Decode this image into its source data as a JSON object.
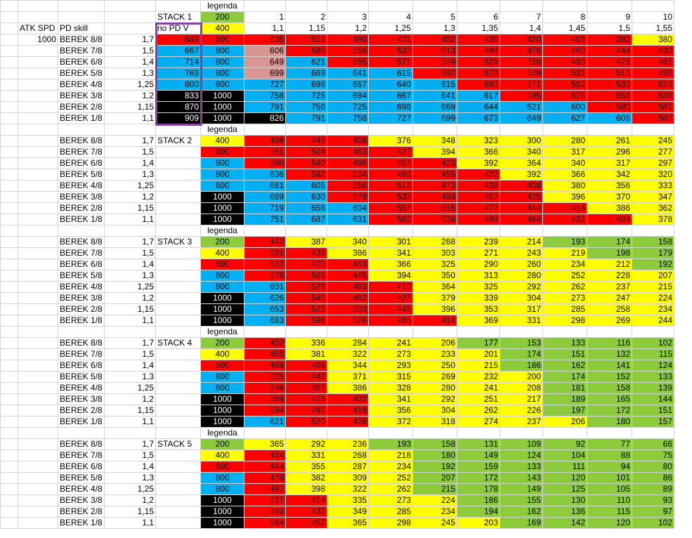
{
  "colors": {
    "green": "#8ccc3c",
    "yellow": "#ffff00",
    "red": "#ff0000",
    "blue": "#00b0f0",
    "black": "#000000",
    "pink": "#d99594",
    "purple_box": "#8a3fa0"
  },
  "header": {
    "atk_spd_label": "ATK SPD",
    "atk_spd_value": "1000",
    "pd_skill_label": "PD skill",
    "no_pd_label": "no PD V",
    "top_values": [
      "200",
      "400"
    ],
    "columns": [
      "1",
      "2",
      "3",
      "4",
      "5",
      "6",
      "7",
      "8",
      "9",
      "10"
    ],
    "multipliers": [
      "1,1",
      "1,15",
      "1,2",
      "1,25",
      "1,3",
      "1,35",
      "1,4",
      "1,45",
      "1,5",
      "1,55"
    ]
  },
  "legend_label": "legenda",
  "rows": [
    {
      "name": "BEREK 8/8",
      "skill": "1,7"
    },
    {
      "name": "BEREK 7/8",
      "skill": "1,5"
    },
    {
      "name": "BEREK 6/8",
      "skill": "1,4"
    },
    {
      "name": "BEREK 5/8",
      "skill": "1,3"
    },
    {
      "name": "BEREK 4/8",
      "skill": "1,25"
    },
    {
      "name": "BEREK 3/8",
      "skill": "1,2"
    },
    {
      "name": "BEREK 2/8",
      "skill": "1,15"
    },
    {
      "name": "BEREK 1/8",
      "skill": "1,1"
    }
  ],
  "stacks": [
    {
      "label": "STACK 1",
      "col_a": [
        "588",
        "667",
        "714",
        "769",
        "800",
        "833",
        "870",
        "909"
      ],
      "col_a_colors": [
        "red",
        "blue",
        "blue",
        "blue",
        "blue",
        "black",
        "black",
        "black"
      ],
      "col_b": [
        "600",
        "800",
        "800",
        "800",
        "800",
        "1000",
        "1000",
        "1000"
      ],
      "col_b_colors": [
        "red",
        "blue",
        "blue",
        "blue",
        "blue",
        "black",
        "black",
        "black"
      ],
      "values": [
        [
          "535",
          "512",
          "490",
          "471",
          "452",
          "436",
          "420",
          "406",
          "392",
          "380"
        ],
        [
          "606",
          "580",
          "556",
          "533",
          "513",
          "494",
          "476",
          "460",
          "444",
          "430"
        ],
        [
          "649",
          "621",
          "595",
          "571",
          "549",
          "529",
          "510",
          "493",
          "476",
          "461"
        ],
        [
          "699",
          "669",
          "641",
          "615",
          "592",
          "570",
          "549",
          "531",
          "513",
          "496"
        ],
        [
          "727",
          "696",
          "667",
          "640",
          "615",
          "593",
          "571",
          "552",
          "533",
          "516"
        ],
        [
          "758",
          "725",
          "694",
          "667",
          "641",
          "617",
          "595",
          "575",
          "556",
          "538"
        ],
        [
          "791",
          "756",
          "725",
          "696",
          "669",
          "644",
          "621",
          "600",
          "580",
          "561"
        ],
        [
          "826",
          "791",
          "758",
          "727",
          "699",
          "673",
          "649",
          "627",
          "606",
          "587"
        ]
      ],
      "colors": [
        [
          "red",
          "red",
          "red",
          "red",
          "red",
          "red",
          "red",
          "red",
          "red",
          "yellow"
        ],
        [
          "pink",
          "red",
          "red",
          "red",
          "red",
          "red",
          "red",
          "red",
          "red",
          "red"
        ],
        [
          "pink",
          "blue",
          "red",
          "red",
          "red",
          "red",
          "red",
          "red",
          "red",
          "red"
        ],
        [
          "pink",
          "blue",
          "blue",
          "blue",
          "red",
          "red",
          "red",
          "red",
          "red",
          "red"
        ],
        [
          "blue",
          "blue",
          "blue",
          "blue",
          "blue",
          "red",
          "red",
          "red",
          "red",
          "red"
        ],
        [
          "blue",
          "blue",
          "blue",
          "blue",
          "blue",
          "blue",
          "red",
          "red",
          "red",
          "red"
        ],
        [
          "blue",
          "blue",
          "blue",
          "blue",
          "blue",
          "blue",
          "blue",
          "blue",
          "red",
          "red"
        ],
        [
          "black",
          "blue",
          "blue",
          "blue",
          "blue",
          "blue",
          "blue",
          "blue",
          "blue",
          "red"
        ]
      ]
    },
    {
      "label": "STACK 2",
      "col_b": [
        "400",
        "600",
        "800",
        "800",
        "800",
        "1000",
        "1000",
        "1000"
      ],
      "col_b_colors": [
        "yellow",
        "red",
        "blue",
        "blue",
        "blue",
        "black",
        "black",
        "black"
      ],
      "values": [
        [
          "486",
          "445",
          "408",
          "376",
          "348",
          "323",
          "300",
          "280",
          "261",
          "245"
        ],
        [
          "551",
          "504",
          "463",
          "427",
          "394",
          "366",
          "340",
          "317",
          "296",
          "277"
        ],
        [
          "590",
          "540",
          "496",
          "457",
          "423",
          "392",
          "364",
          "340",
          "317",
          "297"
        ],
        [
          "636",
          "582",
          "534",
          "492",
          "455",
          "422",
          "392",
          "366",
          "342",
          "320"
        ],
        [
          "661",
          "605",
          "556",
          "512",
          "473",
          "439",
          "408",
          "380",
          "356",
          "333"
        ],
        [
          "689",
          "630",
          "579",
          "533",
          "493",
          "457",
          "425",
          "396",
          "370",
          "347"
        ],
        [
          "719",
          "658",
          "604",
          "557",
          "515",
          "477",
          "444",
          "414",
          "386",
          "362"
        ],
        [
          "751",
          "687",
          "631",
          "582",
          "538",
          "499",
          "464",
          "432",
          "404",
          "378"
        ]
      ],
      "colors": [
        [
          "red",
          "red",
          "red",
          "yellow",
          "yellow",
          "yellow",
          "yellow",
          "yellow",
          "yellow",
          "yellow"
        ],
        [
          "red",
          "red",
          "red",
          "red",
          "yellow",
          "yellow",
          "yellow",
          "yellow",
          "yellow",
          "yellow"
        ],
        [
          "red",
          "red",
          "red",
          "red",
          "red",
          "yellow",
          "yellow",
          "yellow",
          "yellow",
          "yellow"
        ],
        [
          "blue",
          "red",
          "red",
          "red",
          "red",
          "red",
          "yellow",
          "yellow",
          "yellow",
          "yellow"
        ],
        [
          "blue",
          "blue",
          "red",
          "red",
          "red",
          "red",
          "red",
          "yellow",
          "yellow",
          "yellow"
        ],
        [
          "blue",
          "blue",
          "red",
          "red",
          "red",
          "red",
          "red",
          "yellow",
          "yellow",
          "yellow"
        ],
        [
          "blue",
          "blue",
          "blue",
          "red",
          "red",
          "red",
          "red",
          "red",
          "yellow",
          "yellow"
        ],
        [
          "blue",
          "blue",
          "blue",
          "red",
          "red",
          "red",
          "red",
          "red",
          "red",
          "yellow"
        ]
      ]
    },
    {
      "label": "STACK 3",
      "col_b": [
        "200",
        "400",
        "600",
        "800",
        "800",
        "1000",
        "1000",
        "1000"
      ],
      "col_b_colors": [
        "green",
        "yellow",
        "red",
        "blue",
        "blue",
        "black",
        "black",
        "black"
      ],
      "values": [
        [
          "442",
          "387",
          "340",
          "301",
          "268",
          "239",
          "214",
          "193",
          "174",
          "158"
        ],
        [
          "501",
          "438",
          "386",
          "341",
          "303",
          "271",
          "243",
          "219",
          "198",
          "179"
        ],
        [
          "537",
          "470",
          "413",
          "366",
          "325",
          "290",
          "260",
          "234",
          "212",
          "192"
        ],
        [
          "578",
          "506",
          "445",
          "394",
          "350",
          "313",
          "280",
          "252",
          "228",
          "207"
        ],
        [
          "601",
          "526",
          "463",
          "410",
          "364",
          "325",
          "292",
          "262",
          "237",
          "215"
        ],
        [
          "626",
          "548",
          "482",
          "427",
          "379",
          "339",
          "304",
          "273",
          "247",
          "224"
        ],
        [
          "653",
          "572",
          "503",
          "445",
          "396",
          "353",
          "317",
          "285",
          "258",
          "234"
        ],
        [
          "683",
          "598",
          "526",
          "465",
          "414",
          "369",
          "331",
          "298",
          "269",
          "244"
        ]
      ],
      "colors": [
        [
          "red",
          "yellow",
          "yellow",
          "yellow",
          "yellow",
          "yellow",
          "yellow",
          "green",
          "green",
          "green"
        ],
        [
          "red",
          "red",
          "yellow",
          "yellow",
          "yellow",
          "yellow",
          "yellow",
          "yellow",
          "green",
          "green"
        ],
        [
          "red",
          "red",
          "red",
          "yellow",
          "yellow",
          "yellow",
          "yellow",
          "yellow",
          "yellow",
          "green"
        ],
        [
          "red",
          "red",
          "red",
          "yellow",
          "yellow",
          "yellow",
          "yellow",
          "yellow",
          "yellow",
          "yellow"
        ],
        [
          "blue",
          "red",
          "red",
          "red",
          "yellow",
          "yellow",
          "yellow",
          "yellow",
          "yellow",
          "yellow"
        ],
        [
          "blue",
          "red",
          "red",
          "red",
          "yellow",
          "yellow",
          "yellow",
          "yellow",
          "yellow",
          "yellow"
        ],
        [
          "blue",
          "red",
          "red",
          "red",
          "yellow",
          "yellow",
          "yellow",
          "yellow",
          "yellow",
          "yellow"
        ],
        [
          "blue",
          "red",
          "red",
          "red",
          "red",
          "yellow",
          "yellow",
          "yellow",
          "yellow",
          "yellow"
        ]
      ]
    },
    {
      "label": "STACK 4",
      "col_b": [
        "200",
        "400",
        "600",
        "800",
        "800",
        "1000",
        "1000",
        "1000"
      ],
      "col_b_colors": [
        "green",
        "yellow",
        "red",
        "blue",
        "blue",
        "black",
        "black",
        "black"
      ],
      "values": [
        [
          "402",
          "336",
          "284",
          "241",
          "206",
          "177",
          "153",
          "133",
          "116",
          "102"
        ],
        [
          "455",
          "381",
          "322",
          "273",
          "233",
          "201",
          "174",
          "151",
          "132",
          "115"
        ],
        [
          "488",
          "408",
          "344",
          "293",
          "250",
          "215",
          "186",
          "162",
          "141",
          "124"
        ],
        [
          "525",
          "440",
          "371",
          "315",
          "269",
          "232",
          "200",
          "174",
          "152",
          "133"
        ],
        [
          "546",
          "457",
          "386",
          "328",
          "280",
          "241",
          "208",
          "181",
          "158",
          "139"
        ],
        [
          "569",
          "476",
          "402",
          "341",
          "292",
          "251",
          "217",
          "189",
          "165",
          "144"
        ],
        [
          "594",
          "497",
          "419",
          "356",
          "304",
          "262",
          "226",
          "197",
          "172",
          "151"
        ],
        [
          "621",
          "520",
          "438",
          "372",
          "318",
          "274",
          "237",
          "206",
          "180",
          "157"
        ]
      ],
      "colors": [
        [
          "red",
          "yellow",
          "yellow",
          "yellow",
          "yellow",
          "green",
          "green",
          "green",
          "green",
          "green"
        ],
        [
          "red",
          "yellow",
          "yellow",
          "yellow",
          "yellow",
          "yellow",
          "green",
          "green",
          "green",
          "green"
        ],
        [
          "red",
          "red",
          "yellow",
          "yellow",
          "yellow",
          "yellow",
          "green",
          "green",
          "green",
          "green"
        ],
        [
          "red",
          "red",
          "yellow",
          "yellow",
          "yellow",
          "yellow",
          "yellow",
          "green",
          "green",
          "green"
        ],
        [
          "red",
          "red",
          "yellow",
          "yellow",
          "yellow",
          "yellow",
          "yellow",
          "green",
          "green",
          "green"
        ],
        [
          "red",
          "red",
          "red",
          "yellow",
          "yellow",
          "yellow",
          "yellow",
          "green",
          "green",
          "green"
        ],
        [
          "red",
          "red",
          "red",
          "yellow",
          "yellow",
          "yellow",
          "yellow",
          "green",
          "green",
          "green"
        ],
        [
          "blue",
          "red",
          "red",
          "yellow",
          "yellow",
          "yellow",
          "yellow",
          "yellow",
          "green",
          "green"
        ]
      ]
    },
    {
      "label": "STACK 5",
      "col_b": [
        "200",
        "400",
        "600",
        "800",
        "800",
        "1000",
        "1000",
        "1000"
      ],
      "col_b_colors": [
        "green",
        "yellow",
        "red",
        "blue",
        "blue",
        "black",
        "black",
        "black"
      ],
      "values": [
        [
          "365",
          "292",
          "236",
          "193",
          "158",
          "131",
          "109",
          "92",
          "77",
          "66"
        ],
        [
          "414",
          "331",
          "268",
          "218",
          "180",
          "149",
          "124",
          "104",
          "88",
          "75"
        ],
        [
          "444",
          "355",
          "287",
          "234",
          "192",
          "159",
          "133",
          "111",
          "94",
          "80"
        ],
        [
          "478",
          "382",
          "309",
          "252",
          "207",
          "172",
          "143",
          "120",
          "101",
          "86"
        ],
        [
          "497",
          "398",
          "322",
          "262",
          "215",
          "178",
          "149",
          "125",
          "105",
          "89"
        ],
        [
          "517",
          "414",
          "335",
          "273",
          "224",
          "186",
          "155",
          "130",
          "110",
          "93"
        ],
        [
          "540",
          "432",
          "349",
          "285",
          "234",
          "194",
          "162",
          "136",
          "115",
          "97"
        ],
        [
          "564",
          "452",
          "365",
          "298",
          "245",
          "203",
          "169",
          "142",
          "120",
          "102"
        ]
      ],
      "colors": [
        [
          "yellow",
          "yellow",
          "yellow",
          "green",
          "green",
          "green",
          "green",
          "green",
          "green",
          "green"
        ],
        [
          "red",
          "yellow",
          "yellow",
          "yellow",
          "green",
          "green",
          "green",
          "green",
          "green",
          "green"
        ],
        [
          "red",
          "yellow",
          "yellow",
          "yellow",
          "green",
          "green",
          "green",
          "green",
          "green",
          "green"
        ],
        [
          "red",
          "yellow",
          "yellow",
          "yellow",
          "green",
          "green",
          "green",
          "green",
          "green",
          "green"
        ],
        [
          "red",
          "yellow",
          "yellow",
          "yellow",
          "green",
          "green",
          "green",
          "green",
          "green",
          "green"
        ],
        [
          "red",
          "red",
          "yellow",
          "yellow",
          "yellow",
          "green",
          "green",
          "green",
          "green",
          "green"
        ],
        [
          "red",
          "red",
          "yellow",
          "yellow",
          "yellow",
          "green",
          "green",
          "green",
          "green",
          "green"
        ],
        [
          "red",
          "red",
          "yellow",
          "yellow",
          "yellow",
          "yellow",
          "green",
          "green",
          "green",
          "green"
        ]
      ]
    }
  ]
}
